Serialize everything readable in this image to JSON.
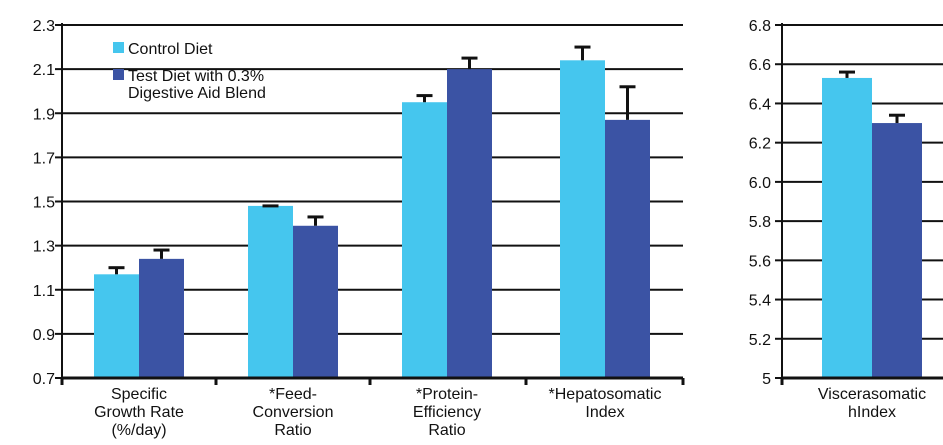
{
  "colors": {
    "control": "#45C6EE",
    "test": "#3B53A4",
    "axis": "#111111",
    "grid": "#111111"
  },
  "legend": [
    {
      "label": "Control Diet",
      "series": "control"
    },
    {
      "label": [
        "Test Diet with 0.3%",
        "Digestive Aid Blend"
      ],
      "series": "test"
    }
  ],
  "chart_data": [
    {
      "type": "bar",
      "categories": [
        [
          "Specific",
          "Growth Rate",
          "(%/day)"
        ],
        [
          "*Feed-",
          "Conversion",
          "Ratio"
        ],
        [
          "*Protein-",
          "Efficiency",
          "Ratio"
        ],
        [
          "*Hepatosomatic",
          "Index"
        ]
      ],
      "series": [
        {
          "name": "Control Diet",
          "values": [
            1.17,
            1.48,
            1.95,
            2.14
          ],
          "errors": [
            0.03,
            0.0,
            0.03,
            0.06
          ]
        },
        {
          "name": "Test Diet with 0.3% Digestive Aid Blend",
          "values": [
            1.24,
            1.39,
            2.1,
            1.87
          ],
          "errors": [
            0.04,
            0.04,
            0.05,
            0.15
          ]
        }
      ],
      "ylim": [
        0.7,
        2.3
      ],
      "yticks": [
        "0.7",
        "0.9",
        "1.1",
        "1.3",
        "1.5",
        "1.7",
        "1.9",
        "2.1",
        "2.3"
      ],
      "grid": true,
      "legend_position": "top-left"
    },
    {
      "type": "bar",
      "categories": [
        [
          "Viscerasomatic",
          "hIndex"
        ]
      ],
      "series": [
        {
          "name": "Control Diet",
          "values": [
            6.53
          ],
          "errors": [
            0.03
          ]
        },
        {
          "name": "Test Diet with 0.3% Digestive Aid Blend",
          "values": [
            6.3
          ],
          "errors": [
            0.04
          ]
        }
      ],
      "ylim": [
        5.0,
        6.8
      ],
      "yticks": [
        "5",
        "5.2",
        "5.4",
        "5.6",
        "5.8",
        "6.0",
        "6.2",
        "6.4",
        "6.6",
        "6.8"
      ],
      "grid": true
    }
  ]
}
